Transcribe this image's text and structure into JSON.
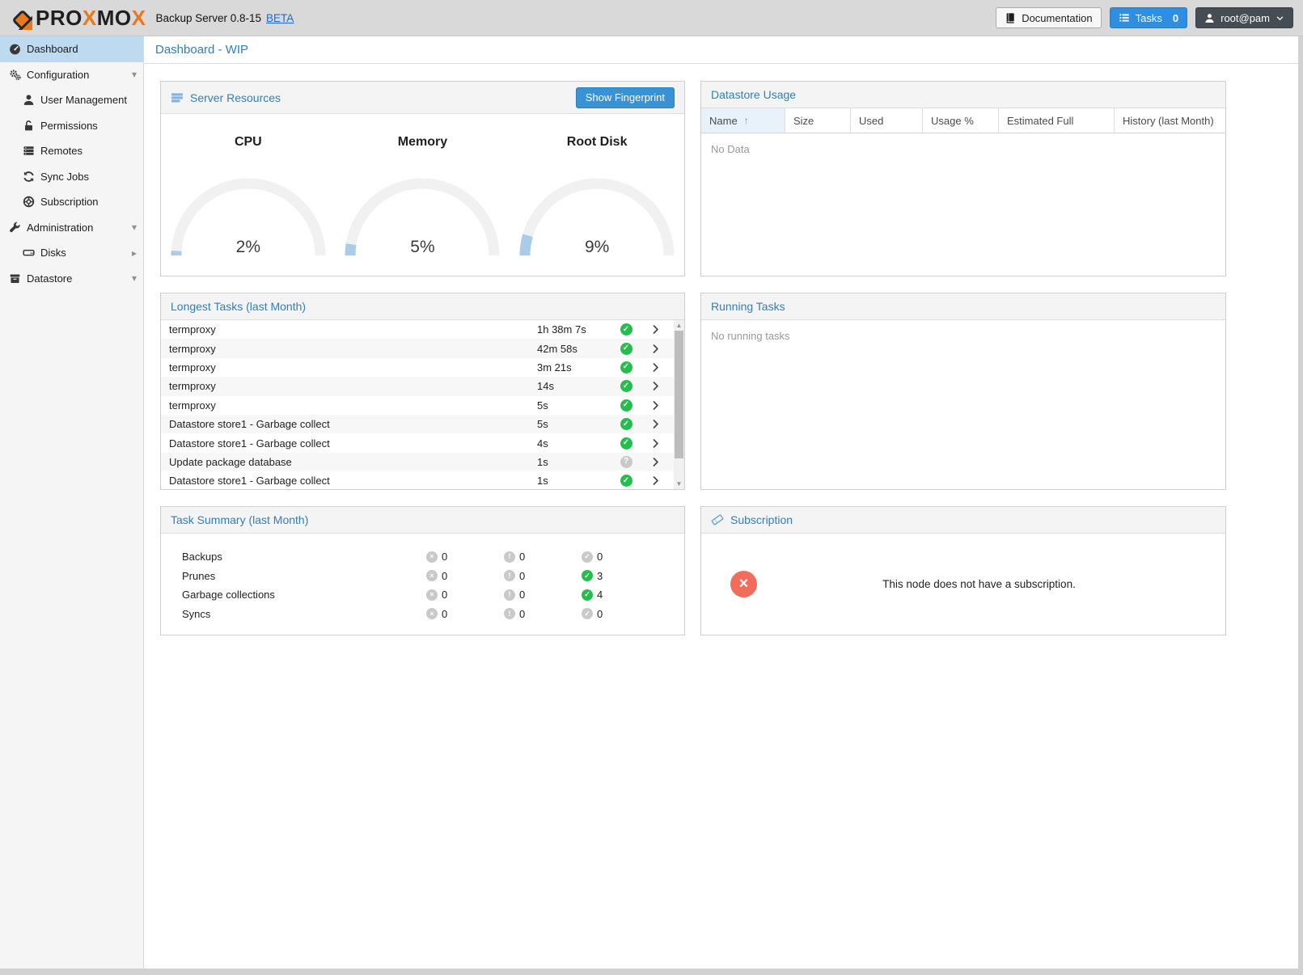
{
  "topbar": {
    "brand": "PROXMOX",
    "product": "Backup Server 0.8-15",
    "beta": "BETA",
    "buttons": {
      "documentation": "Documentation",
      "tasks": "Tasks",
      "tasks_count": "0",
      "user": "root@pam"
    }
  },
  "sidebar": {
    "items": [
      {
        "label": "Dashboard",
        "icon": "tachometer-icon",
        "indent": 0,
        "selected": true
      },
      {
        "label": "Configuration",
        "icon": "gears-icon",
        "indent": 0,
        "caret": "down"
      },
      {
        "label": "User Management",
        "icon": "user-icon",
        "indent": 1
      },
      {
        "label": "Permissions",
        "icon": "unlock-icon",
        "indent": 1
      },
      {
        "label": "Remotes",
        "icon": "server-icon",
        "indent": 1
      },
      {
        "label": "Sync Jobs",
        "icon": "sync-icon",
        "indent": 1
      },
      {
        "label": "Subscription",
        "icon": "lifering-icon",
        "indent": 1
      },
      {
        "label": "Administration",
        "icon": "wrench-icon",
        "indent": 0,
        "caret": "down"
      },
      {
        "label": "Disks",
        "icon": "hdd-icon",
        "indent": 1,
        "caret": "right"
      },
      {
        "label": "Datastore",
        "icon": "archive-icon",
        "indent": 0,
        "caret": "down"
      }
    ]
  },
  "page_title": "Dashboard - WIP",
  "panels": {
    "server_resources": {
      "title": "Server Resources",
      "icon": "server-bars-icon",
      "button": "Show Fingerprint",
      "gauges": [
        {
          "label": "CPU",
          "value": "2%",
          "percent": 2
        },
        {
          "label": "Memory",
          "value": "5%",
          "percent": 5
        },
        {
          "label": "Root Disk",
          "value": "9%",
          "percent": 9
        }
      ]
    },
    "datastore_usage": {
      "title": "Datastore Usage",
      "columns": [
        "Name",
        "Size",
        "Used",
        "Usage %",
        "Estimated Full",
        "History (last Month)"
      ],
      "sorted_column": "Name",
      "sort_direction": "asc",
      "empty_text": "No Data"
    },
    "longest_tasks": {
      "title": "Longest Tasks (last Month)",
      "rows": [
        {
          "name": "termproxy",
          "duration": "1h 38m 7s",
          "status": "ok"
        },
        {
          "name": "termproxy",
          "duration": "42m 58s",
          "status": "ok"
        },
        {
          "name": "termproxy",
          "duration": "3m 21s",
          "status": "ok"
        },
        {
          "name": "termproxy",
          "duration": "14s",
          "status": "ok"
        },
        {
          "name": "termproxy",
          "duration": "5s",
          "status": "ok"
        },
        {
          "name": "Datastore store1 - Garbage collect",
          "duration": "5s",
          "status": "ok"
        },
        {
          "name": "Datastore store1 - Garbage collect",
          "duration": "4s",
          "status": "ok"
        },
        {
          "name": "Update package database",
          "duration": "1s",
          "status": "unknown"
        },
        {
          "name": "Datastore store1 - Garbage collect",
          "duration": "1s",
          "status": "ok"
        }
      ]
    },
    "running_tasks": {
      "title": "Running Tasks",
      "empty_text": "No running tasks"
    },
    "task_summary": {
      "title": "Task Summary (last Month)",
      "rows": [
        {
          "label": "Backups",
          "error": "0",
          "warning": "0",
          "ok": "0"
        },
        {
          "label": "Prunes",
          "error": "0",
          "warning": "0",
          "ok": "3"
        },
        {
          "label": "Garbage collections",
          "error": "0",
          "warning": "0",
          "ok": "4"
        },
        {
          "label": "Syncs",
          "error": "0",
          "warning": "0",
          "ok": "0"
        }
      ]
    },
    "subscription": {
      "title": "Subscription",
      "icon": "ticket-icon",
      "message": "This node does not have a subscription."
    }
  },
  "colors": {
    "accent_blue": "#3892d4",
    "title_blue": "#2f80ba",
    "selected_item_blue": "#bddaf1",
    "ok_green": "#23be4c",
    "muted_gray": "#c9c9c9",
    "error_red": "#f26c5c",
    "brand_orange": "#e87a1e",
    "gauge_track": "#f1f1f1",
    "gauge_fill": "#a9cce9"
  }
}
